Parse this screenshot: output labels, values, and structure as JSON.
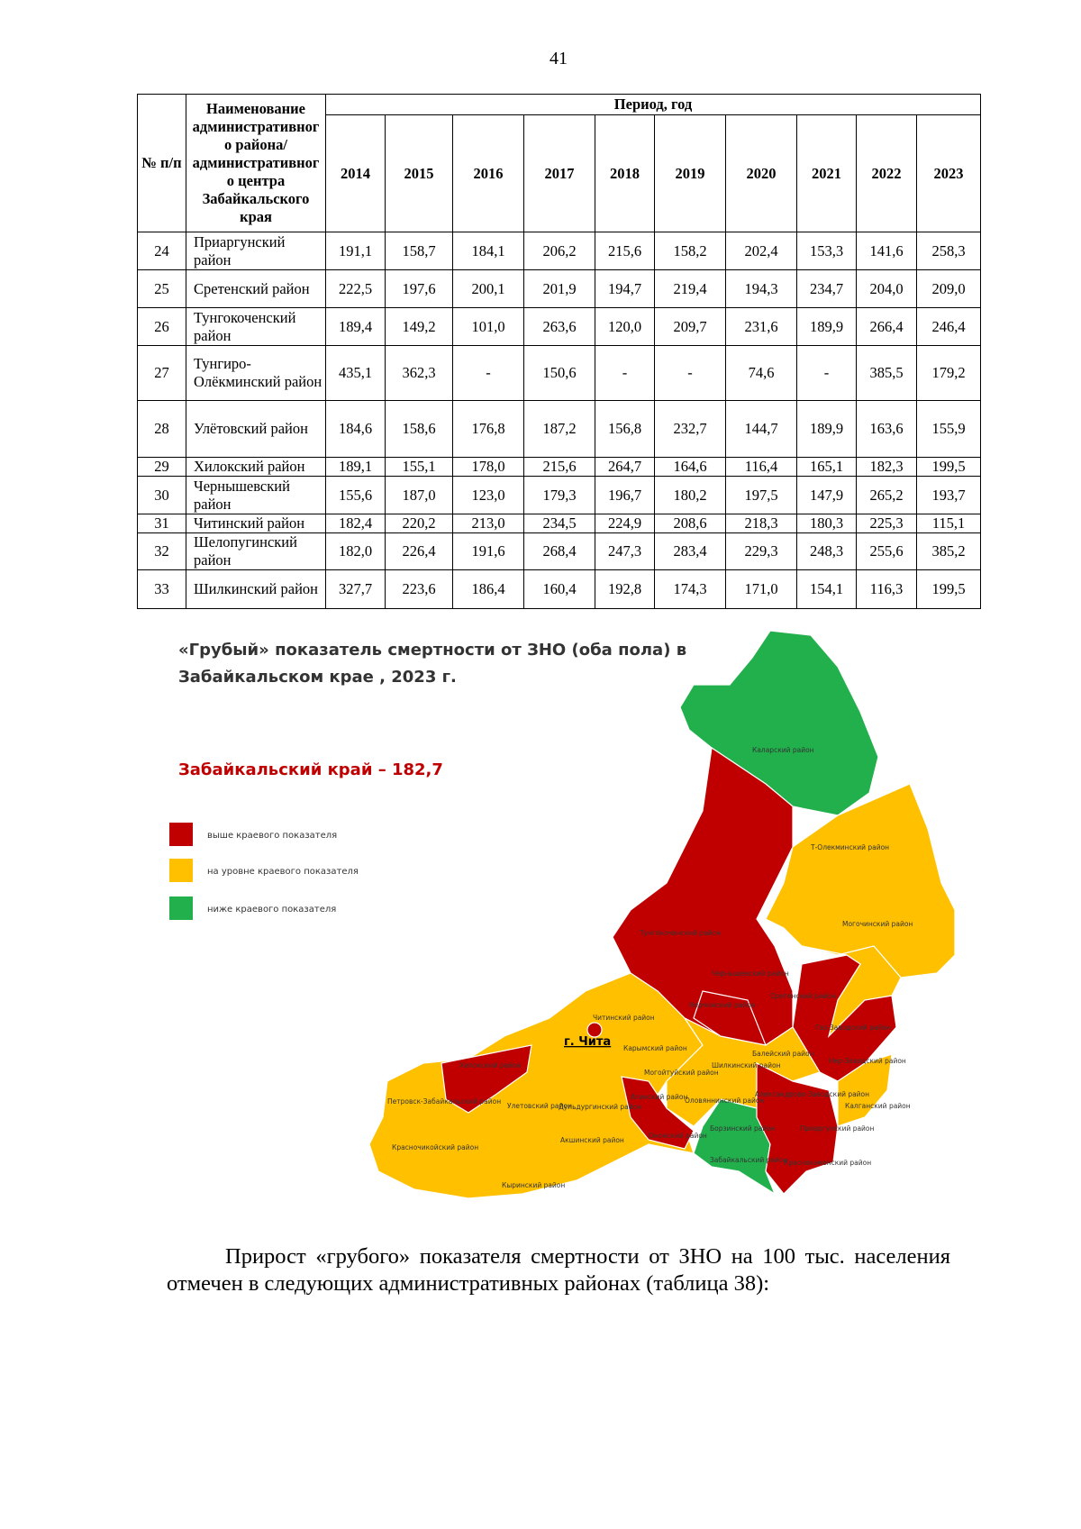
{
  "page_number": "41",
  "table": {
    "header": {
      "no": "№ п/п",
      "name": "Наименование административного района/ административного центра Забайкальского края",
      "period": "Период, год",
      "years": [
        "2014",
        "2015",
        "2016",
        "2017",
        "2018",
        "2019",
        "2020",
        "2021",
        "2022",
        "2023"
      ]
    },
    "rows": [
      [
        "24",
        "Приаргунский район",
        "191,1",
        "158,7",
        "184,1",
        "206,2",
        "215,6",
        "158,2",
        "202,4",
        "153,3",
        "141,6",
        "258,3"
      ],
      [
        "25",
        "Сретенский район",
        "222,5",
        "197,6",
        "200,1",
        "201,9",
        "194,7",
        "219,4",
        "194,3",
        "234,7",
        "204,0",
        "209,0"
      ],
      [
        "26",
        "Тунгокоченский район",
        "189,4",
        "149,2",
        "101,0",
        "263,6",
        "120,0",
        "209,7",
        "231,6",
        "189,9",
        "266,4",
        "246,4"
      ],
      [
        "27",
        "Тунгиро-Олёкминский район",
        "435,1",
        "362,3",
        "-",
        "150,6",
        "-",
        "-",
        "74,6",
        "-",
        "385,5",
        "179,2"
      ],
      [
        "28",
        "Улётовский район",
        "184,6",
        "158,6",
        "176,8",
        "187,2",
        "156,8",
        "232,7",
        "144,7",
        "189,9",
        "163,6",
        "155,9"
      ],
      [
        "29",
        "Хилокский район",
        "189,1",
        "155,1",
        "178,0",
        "215,6",
        "264,7",
        "164,6",
        "116,4",
        "165,1",
        "182,3",
        "199,5"
      ],
      [
        "30",
        "Чернышевский район",
        "155,6",
        "187,0",
        "123,0",
        "179,3",
        "196,7",
        "180,2",
        "197,5",
        "147,9",
        "265,2",
        "193,7"
      ],
      [
        "31",
        "Читинский район",
        "182,4",
        "220,2",
        "213,0",
        "234,5",
        "224,9",
        "208,6",
        "218,3",
        "180,3",
        "225,3",
        "115,1"
      ],
      [
        "32",
        "Шелопугинский район",
        "182,0",
        "226,4",
        "191,6",
        "268,4",
        "247,3",
        "283,4",
        "229,3",
        "248,3",
        "255,6",
        "385,2"
      ],
      [
        "33",
        "Шилкинский район",
        "327,7",
        "223,6",
        "186,4",
        "160,4",
        "192,8",
        "174,3",
        "171,0",
        "154,1",
        "116,3",
        "199,5"
      ]
    ]
  },
  "map": {
    "title": "«Грубый» показатель смертности от ЗНО (оба пола) в Забайкальском крае , 2023 г.",
    "subtitle": "Забайкальский край – 182,7",
    "legend": [
      "выше краевого показателя",
      "на уровне краевого показателя",
      "ниже краевого показателя"
    ],
    "labels": [
      "Каларский район",
      "Т-Олекминский район",
      "Могочинский район",
      "Тунгокочинский район",
      "Чернышевский район",
      "Нерчинский район",
      "Сретенский район",
      "Газ-Заводский район",
      "Читинский район",
      "г. Чита",
      "Карымский район",
      "Шилкинский район",
      "Балейский район",
      "Нер-Заводский район",
      "Хилокский район",
      "Петровск-Забайкальский район",
      "Улетовский район",
      "Могойтуйский район",
      "Агинский район",
      "Дульдургинский район",
      "Оловяннинский район",
      "Александрово-Заводский район",
      "Калганский район",
      "Красночикойский район",
      "Акшинский район",
      "Ононский район",
      "Борзинский район",
      "Приаргунский район",
      "Кыринский район",
      "Забайкальский район",
      "Краснокаменский район"
    ]
  },
  "paragraph": "Прирост «грубого» показателя смертности от ЗНО на 100 тыс. населения отмечен в следующих административных районах (таблица 38):"
}
